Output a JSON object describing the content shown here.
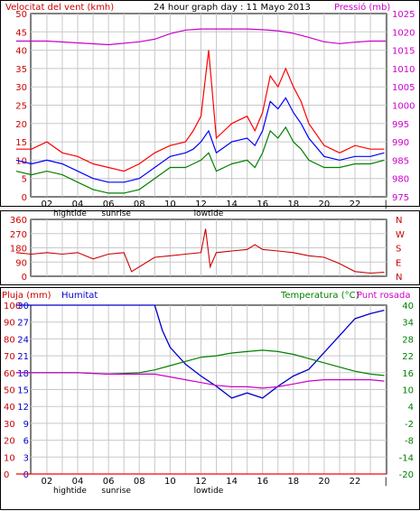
{
  "chart_data": [
    {
      "id": "wind-pressure",
      "type": "line",
      "title": "24 hour graph day : 11 Mayo 2013",
      "left_axis_label": "Velocitat del vent (kmh)",
      "right_axis_label": "Pressió (mb)",
      "left_ylim": [
        0,
        50
      ],
      "left_ticks": [
        "0",
        "5",
        "10",
        "15",
        "20",
        "25",
        "30",
        "35",
        "40",
        "45",
        "50"
      ],
      "right_ylim": [
        975,
        1025
      ],
      "right_ticks": [
        "975",
        "980",
        "985",
        "990",
        "995",
        "1000",
        "1005",
        "1010",
        "1015",
        "1020",
        "1025"
      ],
      "x_ticks": [
        "02",
        "04",
        "06",
        "08",
        "10",
        "12",
        "14",
        "16",
        "18",
        "20",
        "22"
      ],
      "x_sublabels": [
        {
          "hour": 3.5,
          "text": "hightide"
        },
        {
          "hour": 6.5,
          "text": "sunrise"
        },
        {
          "hour": 12.5,
          "text": "lowtide"
        }
      ],
      "series": [
        {
          "key": "gust",
          "color": "#ff0000",
          "x": [
            0,
            1,
            2,
            3,
            4,
            5,
            6,
            7,
            8,
            9,
            10,
            11,
            11.5,
            12,
            12.5,
            13,
            14,
            15,
            15.5,
            16,
            16.5,
            17,
            17.5,
            18,
            18.5,
            19,
            20,
            21,
            22,
            23,
            23.9
          ],
          "values": [
            13,
            13,
            15,
            12,
            11,
            9,
            8,
            7,
            9,
            12,
            14,
            15,
            18,
            22,
            40,
            16,
            20,
            22,
            18,
            23,
            33,
            30,
            35,
            30,
            26,
            20,
            14,
            12,
            14,
            13,
            13
          ]
        },
        {
          "key": "avg",
          "color": "#0000ff",
          "x": [
            0,
            1,
            2,
            3,
            4,
            5,
            6,
            7,
            8,
            9,
            10,
            11,
            11.5,
            12,
            12.5,
            13,
            14,
            15,
            15.5,
            16,
            16.5,
            17,
            17.5,
            18,
            18.5,
            19,
            20,
            21,
            22,
            23,
            23.9
          ],
          "values": [
            10,
            9,
            10,
            9,
            7,
            5,
            4,
            4,
            5,
            8,
            11,
            12,
            13,
            15,
            18,
            12,
            15,
            16,
            14,
            18,
            26,
            24,
            27,
            23,
            20,
            16,
            11,
            10,
            11,
            11,
            12
          ]
        },
        {
          "key": "min",
          "color": "#008000",
          "x": [
            0,
            1,
            2,
            3,
            4,
            5,
            6,
            7,
            8,
            9,
            10,
            11,
            11.5,
            12,
            12.5,
            13,
            14,
            15,
            15.5,
            16,
            16.5,
            17,
            17.5,
            18,
            18.5,
            19,
            20,
            21,
            22,
            23,
            23.9
          ],
          "values": [
            7,
            6,
            7,
            6,
            4,
            2,
            1,
            1,
            2,
            5,
            8,
            8,
            9,
            10,
            12,
            7,
            9,
            10,
            8,
            12,
            18,
            16,
            19,
            15,
            13,
            10,
            8,
            8,
            9,
            9,
            10
          ]
        },
        {
          "key": "pressure",
          "axis": "right",
          "color": "#cc00cc",
          "x": [
            0,
            2,
            4,
            6,
            8,
            9,
            10,
            11,
            12,
            13,
            14,
            15,
            16,
            17,
            18,
            19,
            20,
            21,
            22,
            23,
            24
          ],
          "values": [
            1017.5,
            1017.5,
            1017,
            1016.5,
            1017.3,
            1018,
            1019.5,
            1020.5,
            1020.8,
            1020.8,
            1020.8,
            1020.8,
            1020.6,
            1020.3,
            1019.6,
            1018.5,
            1017.3,
            1016.8,
            1017.2,
            1017.5,
            1017.5
          ]
        }
      ]
    },
    {
      "id": "wind-direction",
      "type": "line",
      "left_ylim": [
        0,
        360
      ],
      "left_ticks": [
        "0",
        "90",
        "180",
        "270",
        "360"
      ],
      "right_labels": [
        "N",
        "W",
        "S",
        "E",
        "N"
      ],
      "series": [
        {
          "key": "direction",
          "color": "#cc0000",
          "x": [
            0,
            1,
            2,
            3,
            4,
            5,
            6,
            7,
            7.5,
            9,
            10,
            11,
            12,
            12.3,
            12.6,
            13,
            14,
            15,
            15.5,
            16,
            17,
            18,
            19,
            20,
            21,
            22,
            23,
            23.9
          ],
          "values": [
            150,
            140,
            150,
            140,
            150,
            110,
            140,
            150,
            30,
            120,
            130,
            140,
            150,
            300,
            60,
            150,
            160,
            170,
            200,
            170,
            160,
            150,
            130,
            120,
            80,
            30,
            20,
            25
          ]
        }
      ]
    },
    {
      "id": "rain-humidity-temp",
      "type": "line",
      "rain_label": "Pluja (mm)",
      "humidity_label": "Humitat",
      "temperature_label": "Temperatura (°C)",
      "dewpoint_label": "Punt rosada",
      "rain_ylim": [
        0,
        100
      ],
      "rain_ticks": [
        "0",
        "10",
        "20",
        "30",
        "40",
        "50",
        "60",
        "70",
        "80",
        "90",
        "100"
      ],
      "humidity_ticks": [
        "0",
        "3",
        "6",
        "9",
        "12",
        "15",
        "18",
        "21",
        "24",
        "27",
        "30"
      ],
      "temp_ylim": [
        -20,
        40
      ],
      "temp_ticks": [
        "-20",
        "-14",
        "-8",
        "-2",
        "4",
        "10",
        "16",
        "22",
        "28",
        "34",
        "40"
      ],
      "series": [
        {
          "key": "rain",
          "color": "#ff0000",
          "axis": "rain",
          "x": [
            0,
            24
          ],
          "values": [
            0,
            0
          ]
        },
        {
          "key": "humidity",
          "color": "#0000cc",
          "axis": "rain",
          "x": [
            0,
            9,
            9.5,
            10,
            11,
            12,
            13,
            14,
            15,
            16,
            17,
            18,
            19,
            20,
            21,
            22,
            23,
            23.9
          ],
          "values": [
            100,
            100,
            85,
            75,
            65,
            58,
            52,
            45,
            48,
            45,
            52,
            58,
            62,
            72,
            82,
            92,
            95,
            97
          ]
        },
        {
          "key": "temperature",
          "color": "#008000",
          "axis": "temp",
          "x": [
            0,
            2,
            4,
            6,
            8,
            9,
            10,
            11,
            12,
            13,
            14,
            15,
            16,
            17,
            18,
            19,
            20,
            21,
            22,
            23,
            23.9
          ],
          "values": [
            16,
            16,
            16,
            15.5,
            16,
            17,
            18.5,
            20,
            21.5,
            22,
            23,
            23.5,
            24,
            23.5,
            22.5,
            21,
            19.5,
            18,
            16.5,
            15.5,
            15
          ]
        },
        {
          "key": "dewpoint",
          "color": "#cc00cc",
          "axis": "temp",
          "x": [
            0,
            2,
            4,
            6,
            8,
            9,
            10,
            11,
            12,
            13,
            14,
            15,
            16,
            17,
            18,
            19,
            20,
            21,
            22,
            23,
            23.9
          ],
          "values": [
            16,
            16,
            16,
            15.5,
            15.5,
            15.5,
            14.5,
            13.5,
            12.5,
            11.5,
            11,
            11,
            10.5,
            11,
            12,
            13,
            13.5,
            13.5,
            13.5,
            13.5,
            13
          ]
        }
      ]
    }
  ]
}
